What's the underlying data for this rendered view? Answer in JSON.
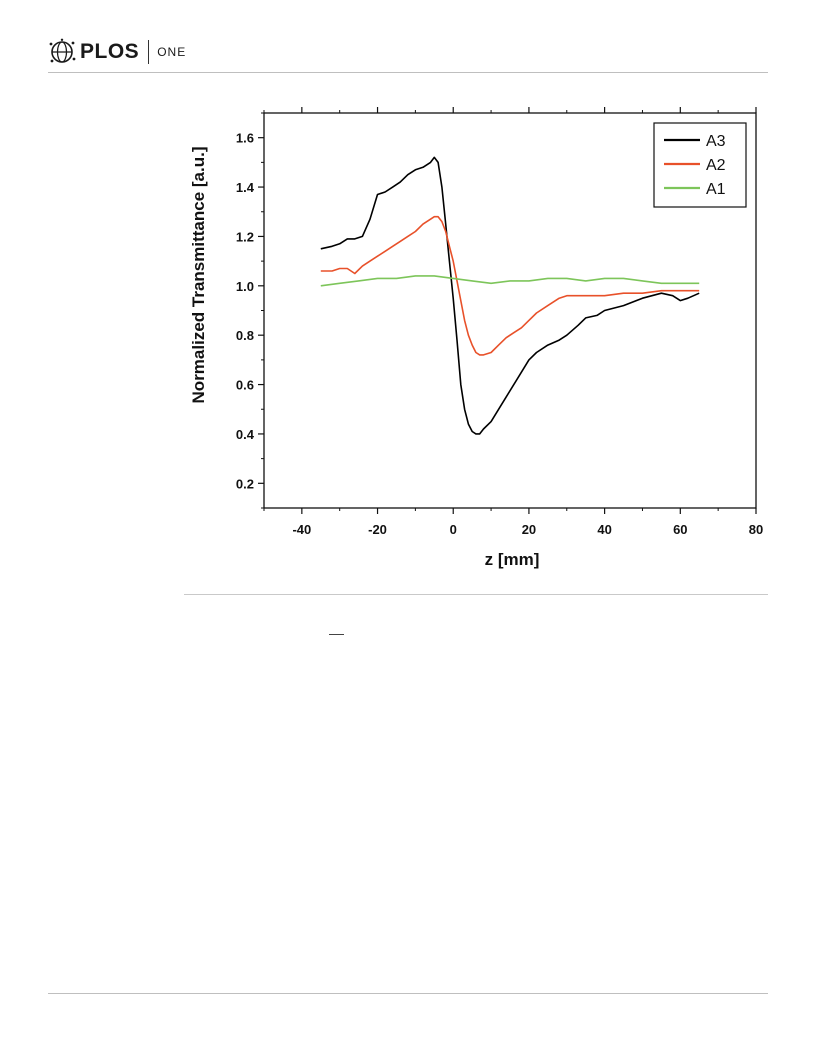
{
  "header": {
    "brand": "PLOS",
    "journal": "ONE",
    "logo_icon": "plos-globe-icon"
  },
  "chart_data": {
    "type": "line",
    "title": "",
    "xlabel": "z [mm]",
    "ylabel": "Normalized Transmittance [a.u.]",
    "xlim": [
      -50,
      80
    ],
    "ylim": [
      0.1,
      1.7
    ],
    "x_ticks": [
      -40,
      -20,
      0,
      20,
      40,
      60,
      80
    ],
    "y_ticks": [
      0.2,
      0.4,
      0.6,
      0.8,
      1.0,
      1.2,
      1.4,
      1.6
    ],
    "x_tick_labels": [
      "-40",
      "-20",
      "0",
      "20",
      "40",
      "60",
      "80"
    ],
    "y_tick_labels": [
      "0.2",
      "0.4",
      "0.6",
      "0.8",
      "1.0",
      "1.2",
      "1.4",
      "1.6"
    ],
    "grid": false,
    "legend_position": "top-right",
    "series": [
      {
        "name": "A3",
        "color": "#000000",
        "x": [
          -35,
          -32,
          -30,
          -28,
          -26,
          -24,
          -22,
          -20,
          -18,
          -16,
          -14,
          -12,
          -10,
          -8,
          -6,
          -5,
          -4,
          -3,
          -2,
          -1,
          0,
          1,
          2,
          3,
          4,
          5,
          6,
          7,
          8,
          10,
          12,
          14,
          16,
          18,
          20,
          22,
          25,
          28,
          30,
          33,
          35,
          38,
          40,
          45,
          50,
          55,
          58,
          60,
          62,
          65
        ],
        "y": [
          1.15,
          1.16,
          1.17,
          1.19,
          1.19,
          1.2,
          1.27,
          1.37,
          1.38,
          1.4,
          1.42,
          1.45,
          1.47,
          1.48,
          1.5,
          1.52,
          1.5,
          1.4,
          1.25,
          1.1,
          0.95,
          0.78,
          0.6,
          0.5,
          0.44,
          0.41,
          0.4,
          0.4,
          0.42,
          0.45,
          0.5,
          0.55,
          0.6,
          0.65,
          0.7,
          0.73,
          0.76,
          0.78,
          0.8,
          0.84,
          0.87,
          0.88,
          0.9,
          0.92,
          0.95,
          0.97,
          0.96,
          0.94,
          0.95,
          0.97
        ]
      },
      {
        "name": "A2",
        "color": "#e8512a",
        "x": [
          -35,
          -32,
          -30,
          -28,
          -26,
          -24,
          -22,
          -20,
          -18,
          -16,
          -14,
          -12,
          -10,
          -8,
          -6,
          -5,
          -4,
          -3,
          -2,
          -1,
          0,
          1,
          2,
          3,
          4,
          5,
          6,
          7,
          8,
          10,
          12,
          14,
          16,
          18,
          20,
          22,
          25,
          28,
          30,
          35,
          40,
          45,
          50,
          55,
          60,
          65
        ],
        "y": [
          1.06,
          1.06,
          1.07,
          1.07,
          1.05,
          1.08,
          1.1,
          1.12,
          1.14,
          1.16,
          1.18,
          1.2,
          1.22,
          1.25,
          1.27,
          1.28,
          1.28,
          1.26,
          1.22,
          1.16,
          1.1,
          1.02,
          0.94,
          0.86,
          0.8,
          0.76,
          0.73,
          0.72,
          0.72,
          0.73,
          0.76,
          0.79,
          0.81,
          0.83,
          0.86,
          0.89,
          0.92,
          0.95,
          0.96,
          0.96,
          0.96,
          0.97,
          0.97,
          0.98,
          0.98,
          0.98
        ]
      },
      {
        "name": "A1",
        "color": "#7dc55a",
        "x": [
          -35,
          -30,
          -25,
          -20,
          -15,
          -10,
          -5,
          0,
          5,
          10,
          15,
          20,
          25,
          30,
          35,
          40,
          45,
          50,
          55,
          60,
          65
        ],
        "y": [
          1.0,
          1.01,
          1.02,
          1.03,
          1.03,
          1.04,
          1.04,
          1.03,
          1.02,
          1.01,
          1.02,
          1.02,
          1.03,
          1.03,
          1.02,
          1.03,
          1.03,
          1.02,
          1.01,
          1.01,
          1.01
        ]
      }
    ]
  }
}
